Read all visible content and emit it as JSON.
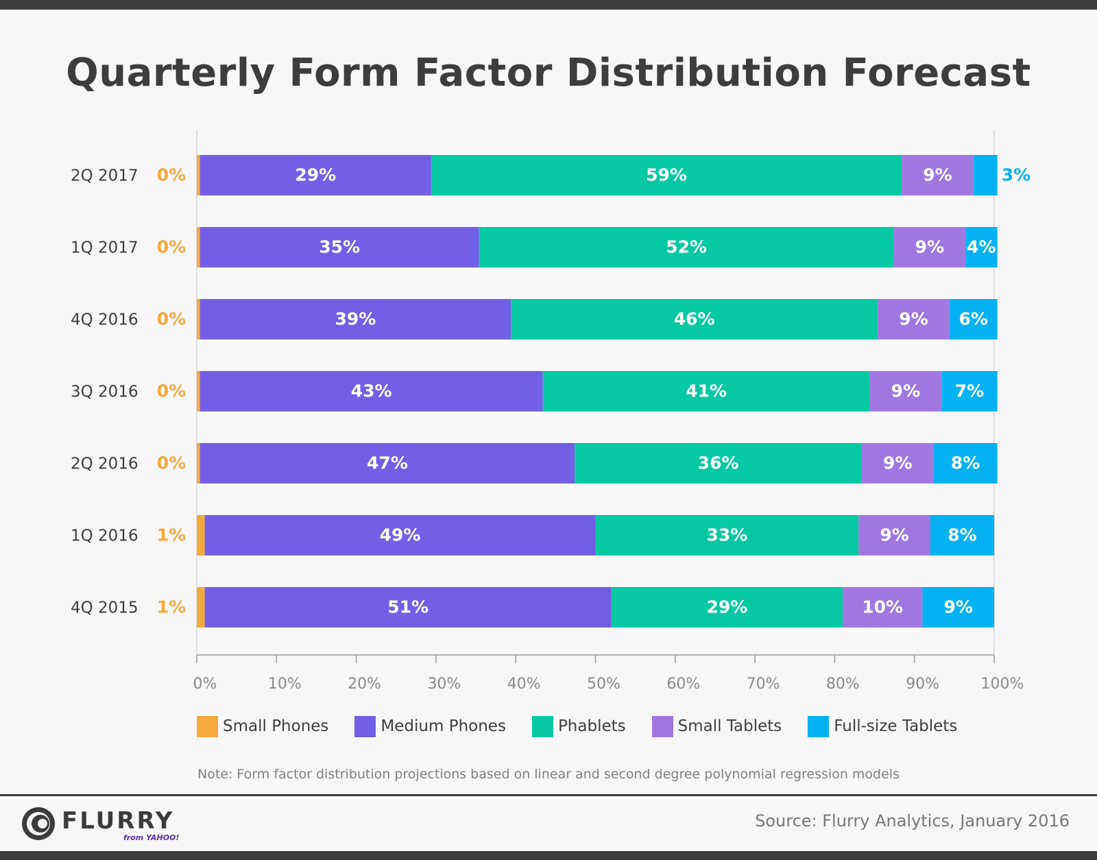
{
  "title": "Quarterly Form Factor Distribution Forecast",
  "note": "Note: Form factor distribution projections based on linear and second degree polynomial regression models",
  "source": "Source: Flurry Analytics, January 2016",
  "logo": {
    "name": "FLURRY",
    "sub": "from YAHOO!"
  },
  "colors": {
    "small_phones": "#f5a93d",
    "medium_phones": "#735fe6",
    "phablets": "#06c9a4",
    "small_tablets": "#a077e0",
    "full_size_tablets": "#06b2f2"
  },
  "chart_data": {
    "type": "bar",
    "orientation": "horizontal",
    "stacked": true,
    "categories": [
      "2Q 2017",
      "1Q 2017",
      "4Q 2016",
      "3Q 2016",
      "2Q 2016",
      "1Q 2016",
      "4Q 2015"
    ],
    "series": [
      {
        "name": "Small Phones",
        "color": "#f5a93d",
        "values": [
          0.4,
          0.4,
          0.4,
          0.4,
          0.4,
          1,
          1
        ],
        "labels": [
          "0%",
          "0%",
          "0%",
          "0%",
          "0%",
          "1%",
          "1%"
        ]
      },
      {
        "name": "Medium Phones",
        "color": "#735fe6",
        "values": [
          29,
          35,
          39,
          43,
          47,
          49,
          51
        ],
        "labels": [
          "29%",
          "35%",
          "39%",
          "43%",
          "47%",
          "49%",
          "51%"
        ]
      },
      {
        "name": "Phablets",
        "color": "#06c9a4",
        "values": [
          59,
          52,
          46,
          41,
          36,
          33,
          29
        ],
        "labels": [
          "59%",
          "52%",
          "46%",
          "41%",
          "36%",
          "33%",
          "29%"
        ]
      },
      {
        "name": "Small Tablets",
        "color": "#a077e0",
        "values": [
          9,
          9,
          9,
          9,
          9,
          9,
          10
        ],
        "labels": [
          "9%",
          "9%",
          "9%",
          "9%",
          "9%",
          "9%",
          "10%"
        ]
      },
      {
        "name": "Full-size Tablets",
        "color": "#06b2f2",
        "values": [
          3,
          4,
          6,
          7,
          8,
          8,
          9
        ],
        "labels": [
          "3%",
          "4%",
          "6%",
          "7%",
          "8%",
          "8%",
          "9%"
        ]
      }
    ],
    "xlim": [
      0,
      100
    ],
    "xticks": [
      "0%",
      "10%",
      "20%",
      "30%",
      "40%",
      "50%",
      "60%",
      "70%",
      "80%",
      "90%",
      "100%"
    ],
    "legend": "bottom",
    "grid": false
  }
}
